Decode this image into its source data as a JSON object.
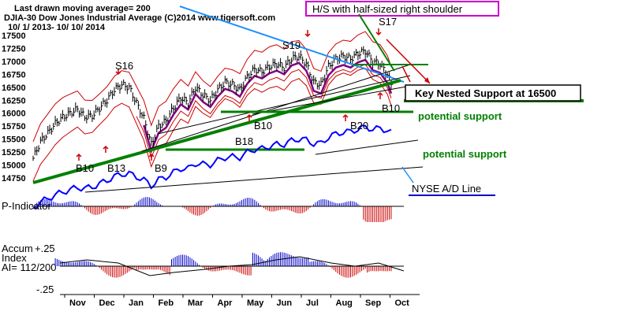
{
  "header": {
    "moving_average_note": "Last drawn moving average= 200",
    "title_line": "DJIA-30  Dow Jones Industrial Average   (C)2014 www.tigersoft.com",
    "date_range": "10/ 1/ 2013- 10/ 10/ 2014"
  },
  "annotations": {
    "hs_box": "H/S with half-sized right shoulder",
    "key_support_box": "Key Nested Support at 16500",
    "potential_support_1": "potential support",
    "potential_support_2": "potential support",
    "nyse_ad_label": "NYSE A/D Line",
    "signals": {
      "S16": "S16",
      "S19": "S19",
      "S17": "S17",
      "B10a": "B10",
      "B13": "B13",
      "B9": "B9",
      "B18": "B18",
      "B10b": "B10",
      "B20": "B20",
      "B10c": "B10"
    }
  },
  "panels": {
    "p_indicator_label": "P-Indicator",
    "accum_label_1": "Accum",
    "accum_label_2": "Index",
    "accum_label_3": "AI= 112/200",
    "accum_top_tick": "+.25",
    "accum_bottom_tick": "-.25"
  },
  "colors": {
    "price_bars": "#000000",
    "bands": "#cc0000",
    "ma_purple": "#800080",
    "trendline_green": "#008000",
    "downtrend_blue": "#1e90ff",
    "ad_line": "#0000ff",
    "positive_hist": "#0000cc",
    "negative_hist": "#cc0000",
    "hs_box_border": "#cc00cc"
  },
  "chart_data": {
    "type": "line",
    "title": "DJIA-30  Dow Jones Industrial Average",
    "y_ticks": [
      "17500",
      "17250",
      "17000",
      "16750",
      "16500",
      "16250",
      "16000",
      "15750",
      "15500",
      "15250",
      "15000",
      "14750"
    ],
    "ylim": [
      14750,
      17625
    ],
    "x_ticks": [
      "Nov",
      "Dec",
      "Jan",
      "Feb",
      "Mar",
      "Apr",
      "May",
      "Jun",
      "Jul",
      "Aug",
      "Sep",
      "Oct"
    ],
    "series": [
      {
        "name": "DJIA-30",
        "points": [
          [
            0,
            15130
          ],
          [
            4,
            15450
          ],
          [
            8,
            15620
          ],
          [
            12,
            15800
          ],
          [
            16,
            15920
          ],
          [
            20,
            16000
          ],
          [
            24,
            16080
          ],
          [
            28,
            15930
          ],
          [
            32,
            15950
          ],
          [
            36,
            16100
          ],
          [
            40,
            16250
          ],
          [
            44,
            16450
          ],
          [
            48,
            16550
          ],
          [
            52,
            16500
          ],
          [
            56,
            16200
          ],
          [
            60,
            15900
          ],
          [
            64,
            15400
          ],
          [
            68,
            15750
          ],
          [
            72,
            15850
          ],
          [
            76,
            16100
          ],
          [
            80,
            16300
          ],
          [
            84,
            16200
          ],
          [
            88,
            16500
          ],
          [
            92,
            16350
          ],
          [
            96,
            16250
          ],
          [
            100,
            16450
          ],
          [
            104,
            16600
          ],
          [
            108,
            16550
          ],
          [
            112,
            16450
          ],
          [
            116,
            16700
          ],
          [
            120,
            16850
          ],
          [
            124,
            16800
          ],
          [
            128,
            16900
          ],
          [
            132,
            16950
          ],
          [
            136,
            16880
          ],
          [
            140,
            17050
          ],
          [
            144,
            17100
          ],
          [
            148,
            16950
          ],
          [
            152,
            16600
          ],
          [
            156,
            16550
          ],
          [
            160,
            16900
          ],
          [
            164,
            17050
          ],
          [
            168,
            17100
          ],
          [
            172,
            17050
          ],
          [
            176,
            17150
          ],
          [
            180,
            17200
          ],
          [
            184,
            17000
          ],
          [
            188,
            16950
          ],
          [
            192,
            16750
          ],
          [
            194,
            16550
          ]
        ]
      }
    ],
    "x_range": [
      0,
      200
    ]
  }
}
